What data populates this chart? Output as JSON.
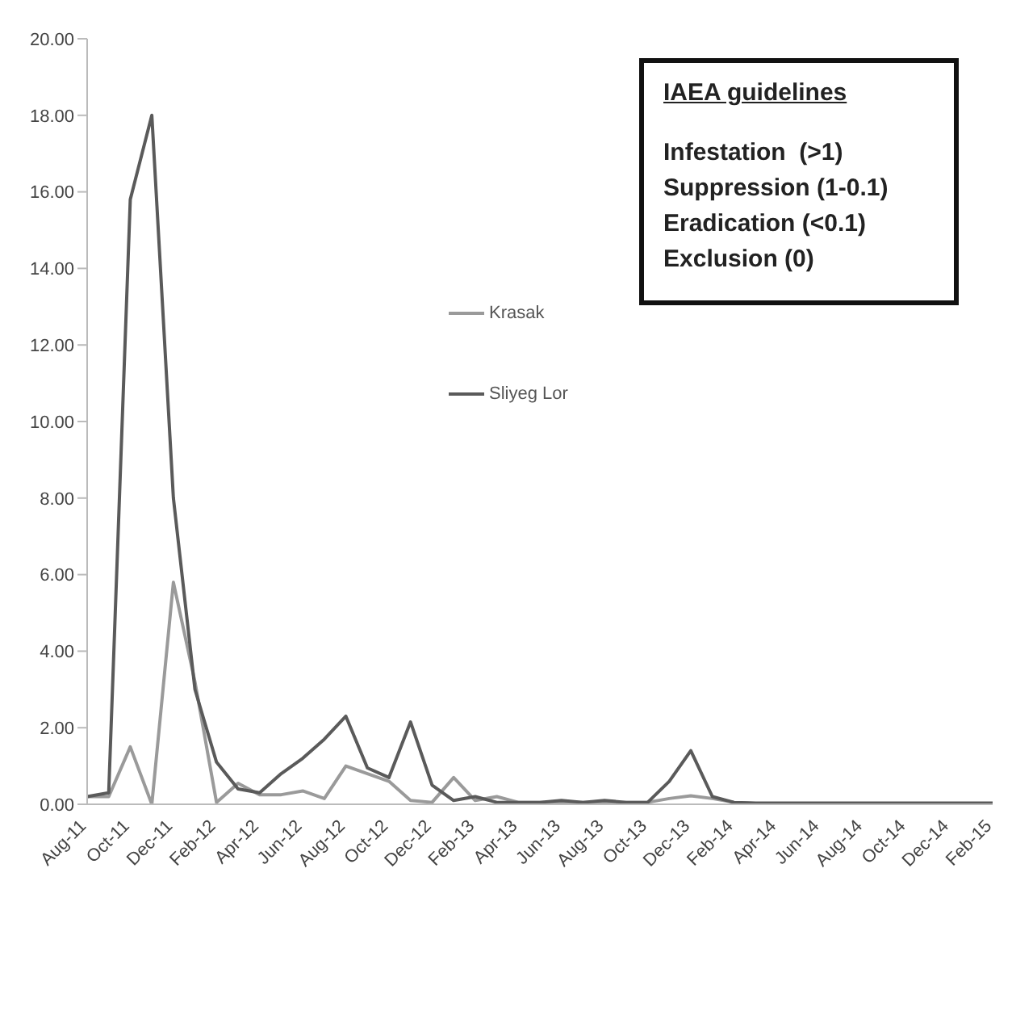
{
  "chart_data": {
    "type": "line",
    "categories": [
      "Aug-11",
      null,
      "Oct-11",
      null,
      "Dec-11",
      null,
      "Feb-12",
      null,
      "Apr-12",
      null,
      "Jun-12",
      null,
      "Aug-12",
      null,
      "Oct-12",
      null,
      "Dec-12",
      null,
      "Feb-13",
      null,
      "Apr-13",
      null,
      "Jun-13",
      null,
      "Aug-13",
      null,
      "Oct-13",
      null,
      "Dec-13",
      null,
      "Feb-14",
      null,
      "Apr-14",
      null,
      "Jun-14",
      null,
      "Aug-14",
      null,
      "Oct-14",
      null,
      "Dec-14",
      null,
      "Feb-15"
    ],
    "series": [
      {
        "name": "Krasak",
        "color": "#9a9a9a",
        "values": [
          0.2,
          0.2,
          1.5,
          0.0,
          5.8,
          3.2,
          0.05,
          0.55,
          0.25,
          0.25,
          0.35,
          0.15,
          1.0,
          0.8,
          0.6,
          0.1,
          0.05,
          0.7,
          0.1,
          0.2,
          0.05,
          0.05,
          0.05,
          0.05,
          0.05,
          0.05,
          0.05,
          0.15,
          0.22,
          0.15,
          0.05,
          0.02,
          0.02,
          0.02,
          0.02,
          0.02,
          0.02,
          0.02,
          0.02,
          0.02,
          0.02,
          0.02,
          0.02
        ]
      },
      {
        "name": "Sliyeg Lor",
        "color": "#5a5a5a",
        "values": [
          0.2,
          0.3,
          15.8,
          18.0,
          8.0,
          3.0,
          1.1,
          0.4,
          0.3,
          0.8,
          1.2,
          1.7,
          2.3,
          0.95,
          0.7,
          2.15,
          0.5,
          0.1,
          0.2,
          0.05,
          0.05,
          0.05,
          0.1,
          0.05,
          0.1,
          0.05,
          0.05,
          0.6,
          1.4,
          0.2,
          0.05,
          0.03,
          0.03,
          0.03,
          0.03,
          0.03,
          0.03,
          0.03,
          0.03,
          0.03,
          0.03,
          0.03,
          0.03
        ]
      }
    ],
    "ylim": [
      0,
      20
    ],
    "yticks": [
      {
        "value": 0,
        "label": "0.00"
      },
      {
        "value": 2,
        "label": "2.00"
      },
      {
        "value": 4,
        "label": "4.00"
      },
      {
        "value": 6,
        "label": "6.00"
      },
      {
        "value": 8,
        "label": "8.00"
      },
      {
        "value": 10,
        "label": "10.00"
      },
      {
        "value": 12,
        "label": "12.00"
      },
      {
        "value": 14,
        "label": "14.00"
      },
      {
        "value": 16,
        "label": "16.00"
      },
      {
        "value": 18,
        "label": "18.00"
      },
      {
        "value": 20,
        "label": "20.00"
      }
    ],
    "grid": false,
    "legend": "center",
    "marker": "none",
    "line_style": "solid",
    "annotations": [
      "IAEA guidelines",
      "Infestation  (>1)",
      "Suppression (1-0.1)",
      "Eradication (<0.1)",
      "Exclusion (0)"
    ]
  }
}
